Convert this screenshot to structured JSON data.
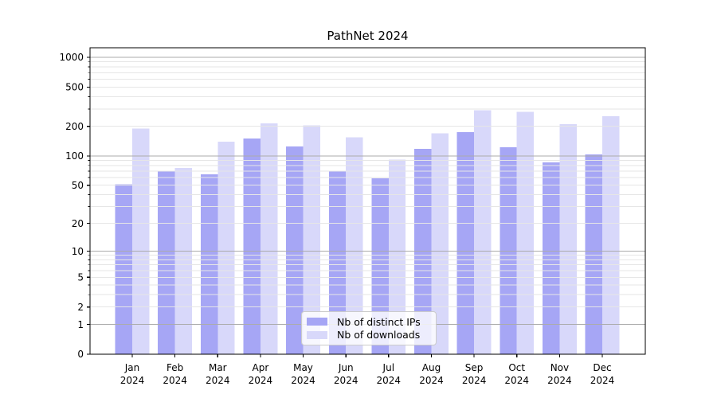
{
  "chart_data": {
    "type": "bar",
    "title": "PathNet 2024",
    "months": [
      "Jan",
      "Feb",
      "Mar",
      "Apr",
      "May",
      "Jun",
      "Jul",
      "Aug",
      "Sep",
      "Oct",
      "Nov",
      "Dec"
    ],
    "year": "2024",
    "categories": [
      "Jan 2024",
      "Feb 2024",
      "Mar 2024",
      "Apr 2024",
      "May 2024",
      "Jun 2024",
      "Jul 2024",
      "Aug 2024",
      "Sep 2024",
      "Oct 2024",
      "Nov 2024",
      "Dec 2024"
    ],
    "series": [
      {
        "name": "Nb of distinct IPs",
        "color": "#a6a6f5",
        "values": [
          51,
          70,
          65,
          150,
          125,
          70,
          59,
          118,
          175,
          122,
          86,
          104
        ]
      },
      {
        "name": "Nb of downloads",
        "color": "#d8d8fa",
        "values": [
          190,
          75,
          140,
          215,
          205,
          155,
          92,
          170,
          290,
          280,
          210,
          253
        ]
      }
    ],
    "xlabel": "",
    "ylabel": "",
    "y_scale": "log10(value+1)",
    "y_ticks": [
      0,
      1,
      2,
      5,
      10,
      20,
      50,
      100,
      200,
      500,
      1000
    ],
    "y_major_gridlines": [
      1,
      10,
      100,
      1000
    ],
    "y_minor_gridlines": [
      2,
      3,
      4,
      5,
      6,
      7,
      8,
      9,
      20,
      30,
      40,
      50,
      60,
      70,
      80,
      90,
      200,
      300,
      400,
      500,
      600,
      700,
      800,
      900
    ],
    "ylim": [
      0,
      1250
    ],
    "grid": "on",
    "legend_position": "lower center",
    "colors": {
      "major_grid": "#ababab",
      "minor_grid": "#e6e6e6",
      "spine": "#000000",
      "text": "#000000",
      "background": "#ffffff"
    }
  }
}
